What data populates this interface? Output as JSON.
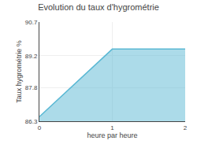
{
  "chart_data": {
    "type": "area",
    "title": "Evolution du taux d'hygrométrie",
    "x_label": "heure par heure",
    "y_label": "Taux hygrométrie %",
    "x": [
      0,
      1,
      2
    ],
    "series": [
      {
        "name": "Taux hygrométrie %",
        "color": "#5ab8d4",
        "values": [
          86.5,
          89.5,
          89.5
        ]
      }
    ],
    "xlim": [
      0,
      2
    ],
    "xticks": [
      0,
      1,
      2
    ],
    "ylim": [
      86.3,
      90.7
    ],
    "yticks": [
      86.3,
      87.8,
      89.2,
      90.7
    ],
    "grid": true
  }
}
